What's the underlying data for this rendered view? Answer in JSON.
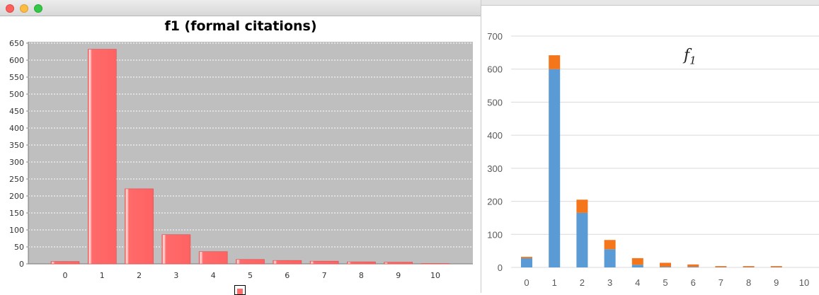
{
  "window": {
    "title": ""
  },
  "chart_data": [
    {
      "type": "bar",
      "title": "f1 (formal citations)",
      "categories": [
        "0",
        "1",
        "2",
        "3",
        "4",
        "5",
        "6",
        "7",
        "8",
        "9",
        "10"
      ],
      "values": [
        7,
        632,
        221,
        86,
        36,
        13,
        10,
        8,
        6,
        5,
        1
      ],
      "ylim": [
        0,
        650
      ],
      "yticks": [
        0,
        50,
        100,
        150,
        200,
        250,
        300,
        350,
        400,
        450,
        500,
        550,
        600,
        650
      ],
      "grid": true,
      "background": "#bfbfbf",
      "bar_color": "#ff6b6b",
      "legend": "bottom"
    },
    {
      "type": "bar",
      "stacked": true,
      "title": "f1",
      "categories": [
        "0",
        "1",
        "2",
        "3",
        "4",
        "5",
        "6",
        "7",
        "8",
        "9",
        "10"
      ],
      "series": [
        {
          "color": "#5b9bd5",
          "values": [
            28,
            600,
            165,
            55,
            8,
            2,
            2,
            1,
            1,
            1,
            0
          ]
        },
        {
          "color": "#f5761a",
          "values": [
            4,
            42,
            40,
            28,
            20,
            12,
            7,
            3,
            3,
            3,
            0
          ]
        }
      ],
      "ylim": [
        0,
        700
      ],
      "yticks": [
        0,
        100,
        200,
        300,
        400,
        500,
        600,
        700
      ],
      "grid": true
    }
  ]
}
